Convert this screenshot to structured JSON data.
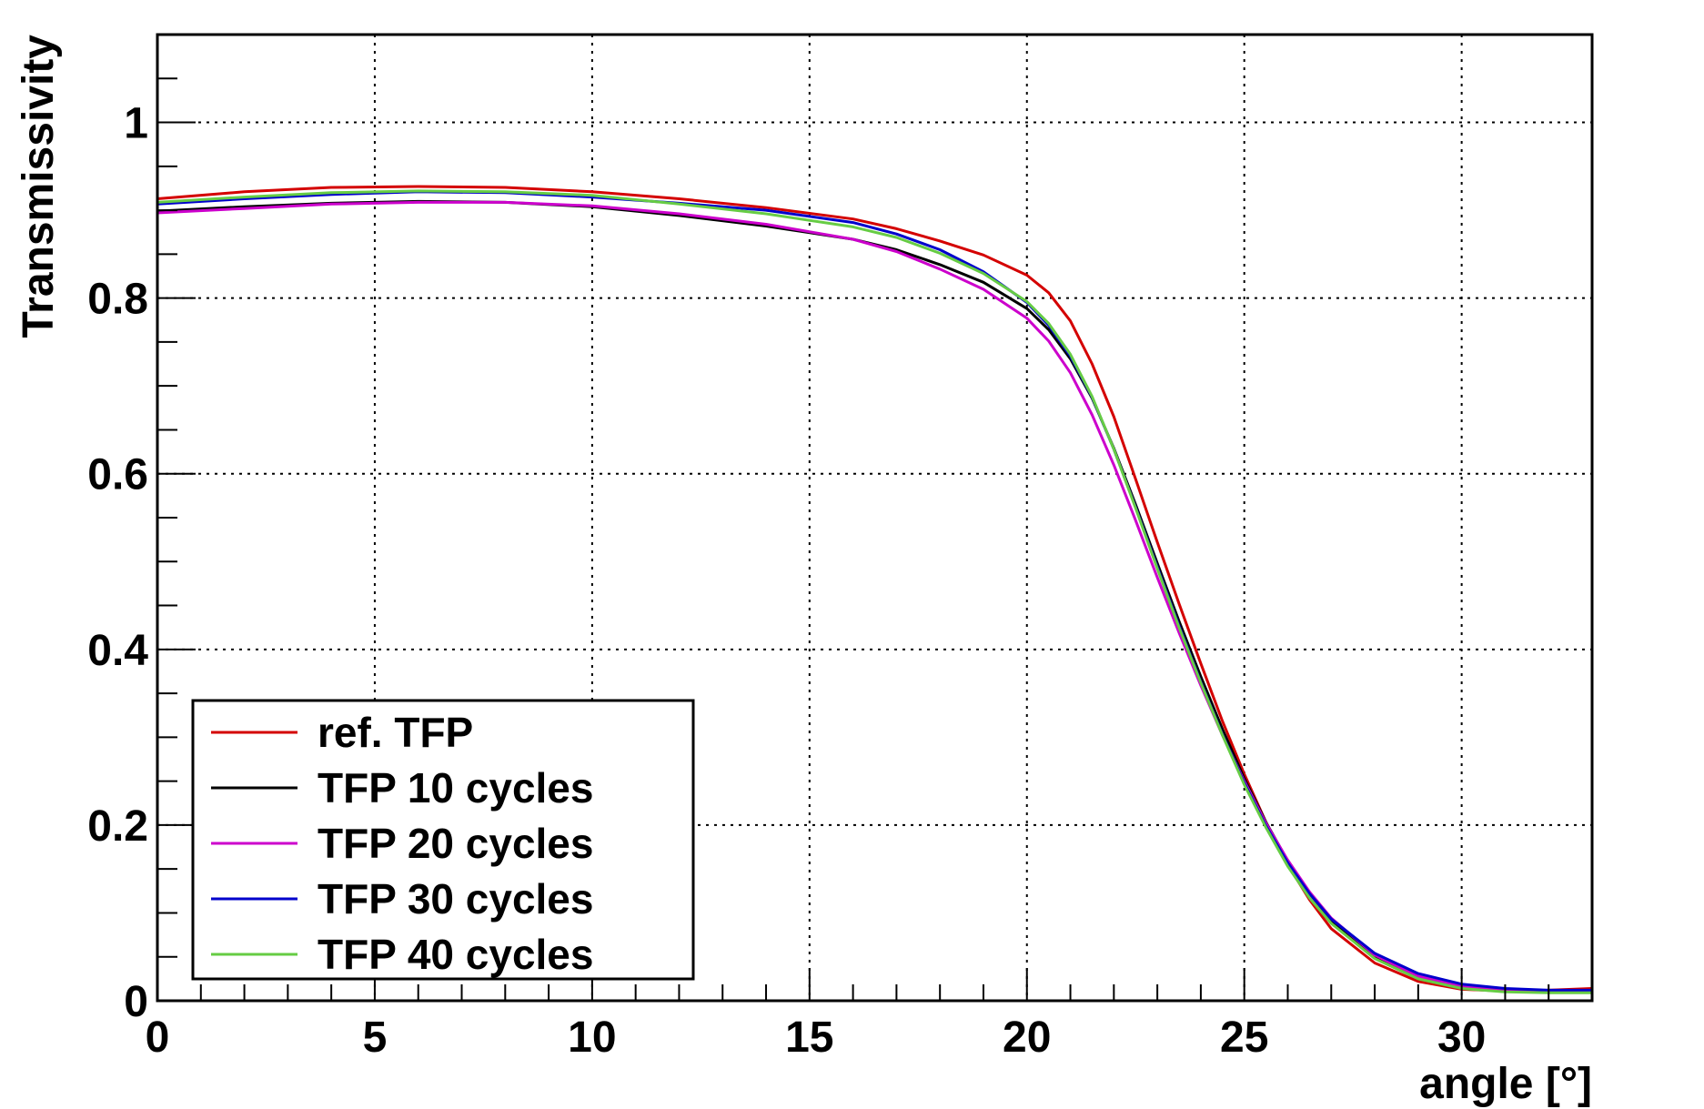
{
  "chart_data": {
    "type": "line",
    "title": "",
    "xlabel": "angle [°]",
    "ylabel": "Transmissivity",
    "xlim": [
      0,
      33
    ],
    "ylim": [
      0,
      1.1
    ],
    "x_ticks": [
      0,
      5,
      10,
      15,
      20,
      25,
      30
    ],
    "x_tick_labels": [
      "0",
      "5",
      "10",
      "15",
      "20",
      "25",
      "30"
    ],
    "y_ticks": [
      0,
      0.2,
      0.4,
      0.6,
      0.8,
      1.0
    ],
    "y_tick_labels": [
      "0",
      "0.2",
      "0.4",
      "0.6",
      "0.8",
      "1"
    ],
    "grid": true,
    "legend_position": "bottom-left",
    "series": [
      {
        "name": "ref. TFP",
        "color": "#d40000",
        "x": [
          0,
          2,
          4,
          6,
          8,
          10,
          12,
          14,
          16,
          17,
          18,
          19,
          20,
          20.5,
          21,
          21.5,
          22,
          22.5,
          23,
          23.5,
          24,
          24.5,
          25,
          25.5,
          26,
          26.5,
          27,
          28,
          29,
          30,
          31,
          32,
          33
        ],
        "values": [
          0.913,
          0.921,
          0.926,
          0.927,
          0.926,
          0.921,
          0.913,
          0.903,
          0.89,
          0.879,
          0.865,
          0.849,
          0.826,
          0.806,
          0.774,
          0.725,
          0.665,
          0.594,
          0.522,
          0.452,
          0.384,
          0.318,
          0.258,
          0.203,
          0.155,
          0.115,
          0.082,
          0.043,
          0.022,
          0.013,
          0.011,
          0.012,
          0.014
        ]
      },
      {
        "name": "TFP 10 cycles",
        "color": "#000000",
        "x": [
          0,
          2,
          4,
          6,
          8,
          10,
          12,
          14,
          16,
          17,
          18,
          19,
          20,
          20.5,
          21,
          21.5,
          22,
          22.5,
          23,
          23.5,
          24,
          24.5,
          25,
          25.5,
          26,
          26.5,
          27,
          28,
          29,
          30,
          31,
          32,
          33
        ],
        "values": [
          0.899,
          0.904,
          0.908,
          0.91,
          0.909,
          0.904,
          0.894,
          0.882,
          0.867,
          0.855,
          0.838,
          0.818,
          0.788,
          0.764,
          0.731,
          0.686,
          0.629,
          0.565,
          0.498,
          0.432,
          0.369,
          0.309,
          0.253,
          0.203,
          0.159,
          0.122,
          0.092,
          0.05,
          0.026,
          0.015,
          0.011,
          0.01,
          0.01
        ]
      },
      {
        "name": "TFP 20 cycles",
        "color": "#cc00cc",
        "x": [
          0,
          2,
          4,
          6,
          8,
          10,
          12,
          14,
          16,
          17,
          18,
          19,
          20,
          20.5,
          21,
          21.5,
          22,
          22.5,
          23,
          23.5,
          24,
          24.5,
          25,
          25.5,
          26,
          26.5,
          27,
          28,
          29,
          30,
          31,
          32,
          33
        ],
        "values": [
          0.897,
          0.902,
          0.907,
          0.909,
          0.909,
          0.905,
          0.896,
          0.884,
          0.867,
          0.853,
          0.833,
          0.81,
          0.777,
          0.751,
          0.715,
          0.667,
          0.61,
          0.547,
          0.482,
          0.419,
          0.359,
          0.302,
          0.25,
          0.202,
          0.16,
          0.124,
          0.094,
          0.052,
          0.028,
          0.016,
          0.012,
          0.011,
          0.011
        ]
      },
      {
        "name": "TFP 30 cycles",
        "color": "#0000cc",
        "x": [
          0,
          2,
          4,
          6,
          8,
          10,
          12,
          14,
          16,
          17,
          18,
          19,
          20,
          20.5,
          21,
          21.5,
          22,
          22.5,
          23,
          23.5,
          24,
          24.5,
          25,
          25.5,
          26,
          26.5,
          27,
          28,
          29,
          30,
          31,
          32,
          33
        ],
        "values": [
          0.907,
          0.913,
          0.918,
          0.921,
          0.92,
          0.915,
          0.908,
          0.9,
          0.886,
          0.873,
          0.855,
          0.83,
          0.795,
          0.769,
          0.734,
          0.687,
          0.628,
          0.562,
          0.494,
          0.427,
          0.363,
          0.303,
          0.248,
          0.199,
          0.157,
          0.122,
          0.093,
          0.054,
          0.031,
          0.019,
          0.014,
          0.012,
          0.012
        ]
      },
      {
        "name": "TFP 40 cycles",
        "color": "#66cc44",
        "x": [
          0,
          2,
          4,
          6,
          8,
          10,
          12,
          14,
          16,
          17,
          18,
          19,
          20,
          20.5,
          21,
          21.5,
          22,
          22.5,
          23,
          23.5,
          24,
          24.5,
          25,
          25.5,
          26,
          26.5,
          27,
          28,
          29,
          30,
          31,
          32,
          33
        ],
        "values": [
          0.909,
          0.915,
          0.92,
          0.922,
          0.921,
          0.917,
          0.907,
          0.896,
          0.881,
          0.869,
          0.851,
          0.828,
          0.796,
          0.771,
          0.736,
          0.688,
          0.628,
          0.561,
          0.492,
          0.425,
          0.362,
          0.302,
          0.246,
          0.197,
          0.153,
          0.117,
          0.088,
          0.048,
          0.025,
          0.014,
          0.01,
          0.009,
          0.009
        ]
      }
    ]
  }
}
